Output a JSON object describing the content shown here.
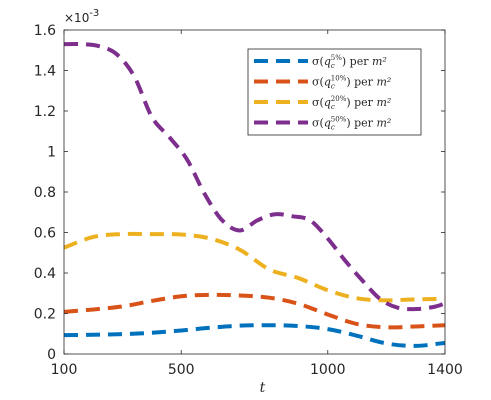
{
  "chart_data": {
    "type": "line",
    "title": "",
    "xlabel": "t",
    "ylabel": "",
    "xlim": [
      100,
      1400
    ],
    "ylim": [
      0,
      0.0016
    ],
    "xticks": [
      100,
      500,
      1000,
      1400
    ],
    "xtick_labels": [
      "100",
      "500",
      "1000",
      "1400"
    ],
    "yticks": [
      0,
      0.0002,
      0.0004,
      0.0006,
      0.0008,
      0.001,
      0.0012,
      0.0014,
      0.0016
    ],
    "ytick_labels": [
      "0",
      "0.2",
      "0.4",
      "0.6",
      "0.8",
      "1",
      "1.2",
      "1.4",
      "1.6"
    ],
    "y_exponent_label": "×10-3",
    "grid": false,
    "legend_position": "top-right",
    "series": [
      {
        "name": "σ(q_c^{5%}) per m²",
        "color": "#0072BD",
        "x": [
          100,
          200,
          300,
          400,
          500,
          600,
          700,
          800,
          900,
          1000,
          1100,
          1200,
          1300,
          1400
        ],
        "y": [
          9.3e-05,
          9.5e-05,
          9.8e-05,
          0.000105,
          0.000116,
          0.00013,
          0.00014,
          0.000142,
          0.000138,
          0.000123,
          9e-05,
          5.2e-05,
          4e-05,
          5.5e-05
        ]
      },
      {
        "name": "σ(q_c^{10%}) per m²",
        "color": "#D95319",
        "x": [
          100,
          200,
          300,
          400,
          500,
          600,
          700,
          800,
          900,
          1000,
          1100,
          1200,
          1300,
          1400
        ],
        "y": [
          0.000208,
          0.00022,
          0.000235,
          0.000262,
          0.000285,
          0.000292,
          0.000289,
          0.000278,
          0.000248,
          0.000195,
          0.000148,
          0.000132,
          0.000136,
          0.000142
        ]
      },
      {
        "name": "σ(q_c^{20%}) per m²",
        "color": "#EDB120",
        "x": [
          100,
          200,
          300,
          400,
          500,
          600,
          700,
          800,
          900,
          1000,
          1100,
          1200,
          1300,
          1400
        ],
        "y": [
          0.000525,
          0.000578,
          0.000592,
          0.000592,
          0.00059,
          0.00057,
          0.000515,
          0.000418,
          0.000375,
          0.000315,
          0.000275,
          0.000265,
          0.00027,
          0.000272
        ]
      },
      {
        "name": "σ(q_c^{50%}) per m²",
        "color": "#7E2F8E",
        "x": [
          100,
          160,
          220,
          280,
          340,
          400,
          460,
          520,
          580,
          640,
          700,
          760,
          820,
          880,
          940,
          1000,
          1060,
          1120,
          1180,
          1240,
          1300,
          1360,
          1400
        ],
        "y": [
          0.00153,
          0.00153,
          0.00152,
          0.00148,
          0.00137,
          0.00117,
          0.00107,
          0.00096,
          0.00079,
          0.00066,
          0.00061,
          0.00066,
          0.00069,
          0.00068,
          0.00066,
          0.00057,
          0.00046,
          0.00036,
          0.00027,
          0.000228,
          0.000222,
          0.000232,
          0.00025
        ]
      }
    ]
  }
}
